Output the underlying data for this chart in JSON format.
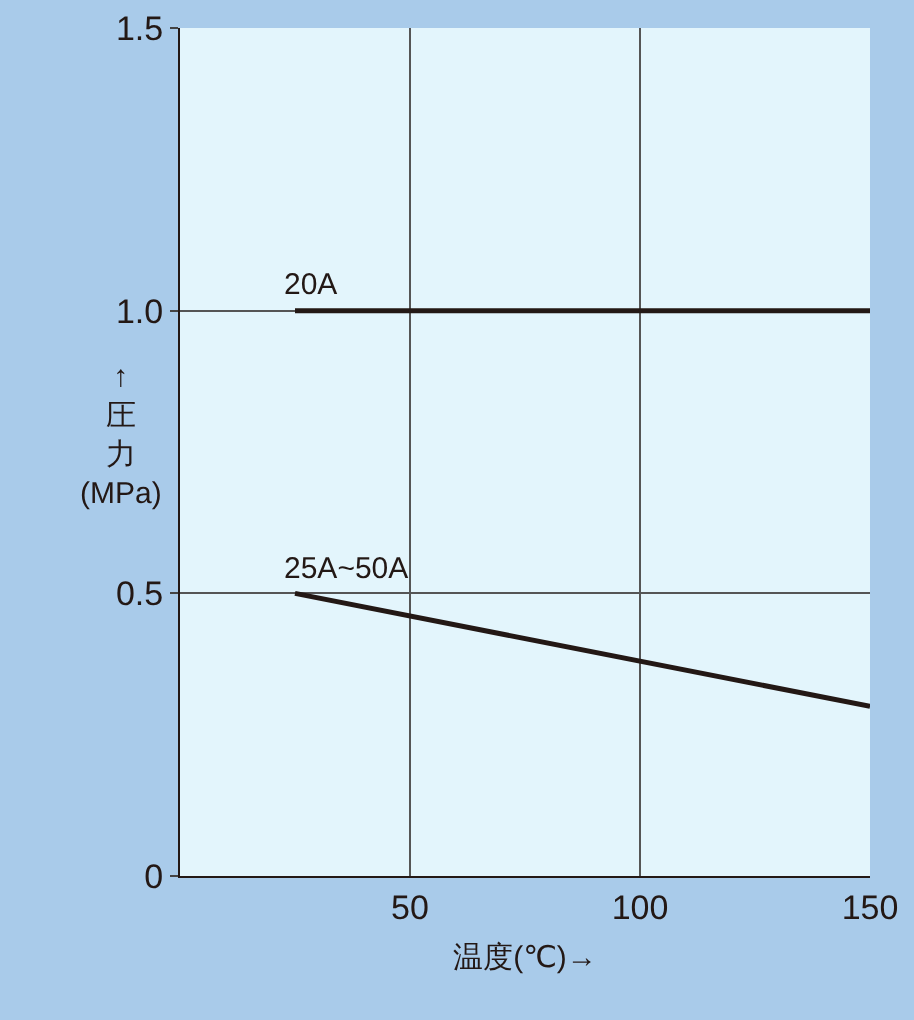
{
  "chart_data": {
    "type": "line",
    "xlabel": "温度(℃)→",
    "ylabel": "↑圧力(MPa)",
    "x": [
      25,
      150
    ],
    "series": [
      {
        "name": "20A",
        "color": "#231815",
        "values": [
          1.0,
          1.0
        ]
      },
      {
        "name": "25A~50A",
        "color": "#231815",
        "values": [
          0.5,
          0.3
        ]
      }
    ],
    "xlim": [
      0,
      150
    ],
    "xticks": [
      50,
      100,
      150
    ],
    "ylim": [
      0,
      1.5
    ],
    "yticks": [
      0,
      0.5,
      {
        "value": 1,
        "label": "1.0"
      },
      1.5
    ],
    "grid": true,
    "legend": false,
    "marker": "none",
    "line_style": "solid"
  }
}
